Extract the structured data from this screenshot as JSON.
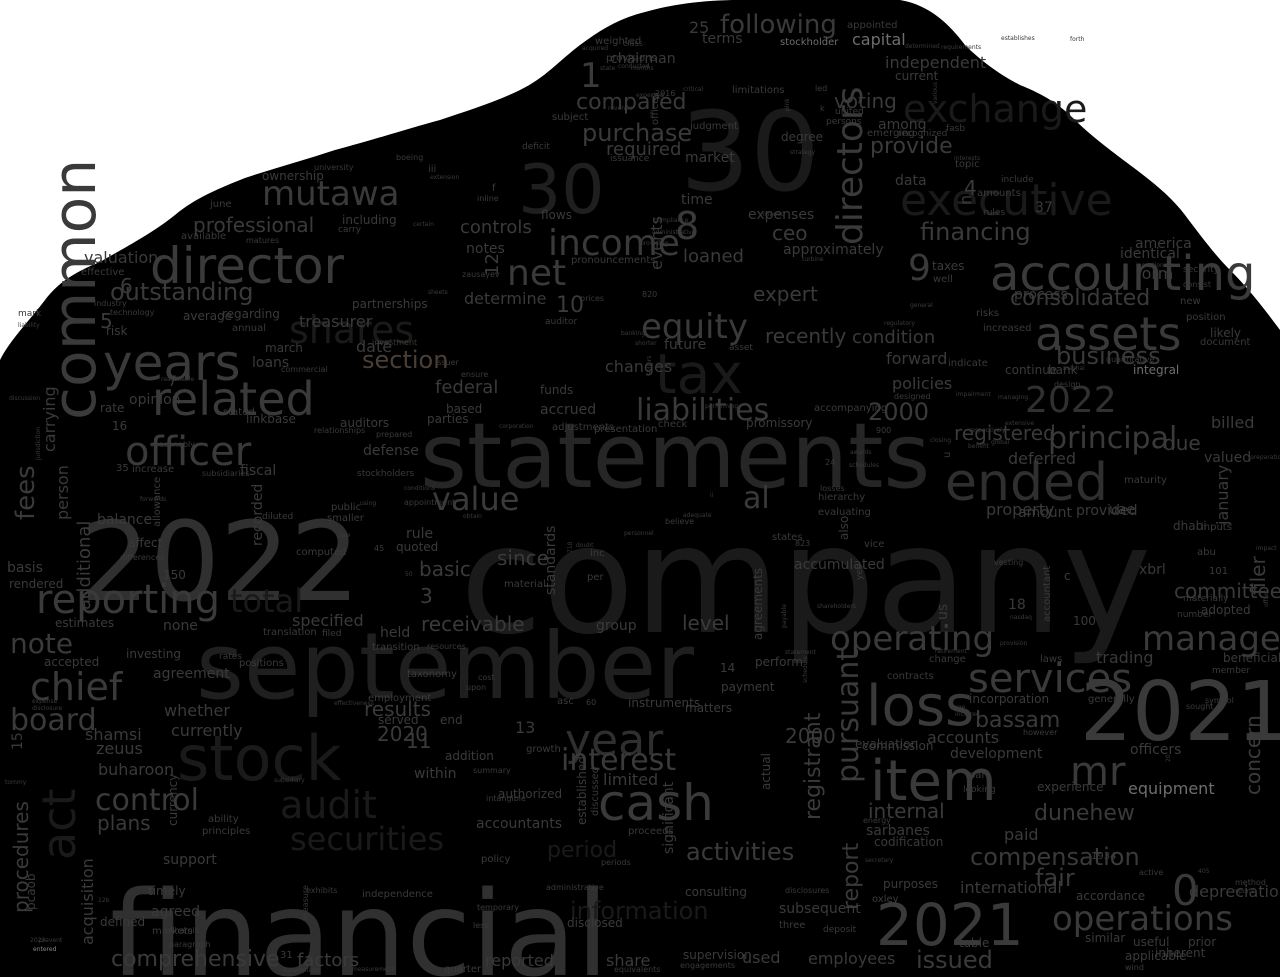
{
  "image": {
    "kind": "word-cloud",
    "background": "#ffffff",
    "shape_fill": "#000000",
    "word_colors": [
      "#1a1a1a",
      "#262626",
      "#303030",
      "#3a3a3a",
      "#2f2f2f",
      "#1f1f1f"
    ],
    "muted_colors": [
      "#6e6e6e",
      "#8a8a8a",
      "#5a5a5a"
    ],
    "accent_colors": [
      "#4a3f36",
      "#3d3a33"
    ]
  },
  "words": [
    "company",
    "financial",
    "statements",
    "september",
    "2022",
    "30",
    "2021",
    "item",
    "stock",
    "tax",
    "ended",
    "common",
    "director",
    "cash",
    "accounting",
    "assets",
    "year",
    "years",
    "related",
    "audit",
    "reporting",
    "officer",
    "mutawa",
    "executive",
    "exchange",
    "mr",
    "act",
    "shares",
    "income",
    "directors",
    "net",
    "total",
    "fees",
    "equity",
    "operating",
    "management",
    "services",
    "loss",
    "value",
    "al",
    "liabilities",
    "securities",
    "interest",
    "operations",
    "pursuant",
    "principal",
    "chief",
    "board",
    "note",
    "control",
    "2000",
    "issued",
    "internal",
    "business",
    "consolidated",
    "financing",
    "outstanding",
    "information",
    "activities",
    "compensation",
    "fair",
    "dunehew",
    "bassam",
    "section",
    "period",
    "report",
    "registrant",
    "following",
    "capital",
    "independent",
    "current",
    "provide",
    "purchase",
    "compared",
    "required",
    "market",
    "time",
    "expenses",
    "ceo",
    "professional",
    "treasurer",
    "date",
    "including",
    "controls",
    "notes",
    "federal",
    "based",
    "accrued",
    "changes",
    "registered",
    "deferred",
    "due",
    "property",
    "committee",
    "concern",
    "filer",
    "january",
    "equipment",
    "officers",
    "paid",
    "depreciation",
    "international",
    "accordance",
    "employees",
    "used",
    "factors",
    "reported",
    "share",
    "comprehensive",
    "procedures",
    "plans",
    "buharoon",
    "zeuus",
    "shamsi",
    "whether",
    "currently",
    "none",
    "agreement",
    "estimates",
    "accepted",
    "basis",
    "rendered",
    "additional",
    "person",
    "carrying",
    "balance",
    "rate",
    "opinion",
    "risk",
    "loans",
    "march",
    "regarding",
    "annual",
    "partnerships",
    "average",
    "valuation",
    "effective",
    "mark",
    "fiscal",
    "defense",
    "auditors",
    "stockholders",
    "public",
    "smaller",
    "recorded",
    "diluted",
    "computed",
    "rule",
    "quoted",
    "basic",
    "since",
    "standards",
    "inc",
    "per",
    "accumulated",
    "vice",
    "us",
    "xbrl",
    "adopted",
    "beneficial",
    "member",
    "trading",
    "change",
    "incorporation",
    "generally",
    "development",
    "accounts",
    "experience",
    "looking",
    "part",
    "recently",
    "condition",
    "policies",
    "forward",
    "indicate",
    "continue",
    "bank",
    "integral",
    "likely",
    "document",
    "position",
    "new",
    "risks",
    "increased",
    "consist",
    "security",
    "identical",
    "america",
    "form",
    "process",
    "taxes",
    "well",
    "data",
    "topic",
    "amounts",
    "rules",
    "include",
    "fasb",
    "emerging",
    "recognized",
    "among",
    "voting",
    "degree",
    "persons",
    "united",
    "also",
    "yes",
    "loaned",
    "events",
    "approximately",
    "pronouncements",
    "flows",
    "deficit",
    "subject",
    "chairman",
    "provisions",
    "weighted",
    "class",
    "terms",
    "stockholder",
    "appointed",
    "determined",
    "requirements",
    "judgment",
    "issuance",
    "offices",
    "2016",
    "critical",
    "limitations",
    "led",
    "expert",
    "determine",
    "prices",
    "auditor",
    "future",
    "asset",
    "funds",
    "ensure",
    "check",
    "promissory",
    "accompanying",
    "presentation",
    "adjustments",
    "corporation",
    "parties",
    "linkbase",
    "stated",
    "relationships",
    "prepared",
    "increase",
    "subsidiaries",
    "allowance",
    "affect",
    "differences",
    "investing",
    "rates",
    "filed",
    "positions",
    "translation",
    "transition",
    "employment",
    "held",
    "specified",
    "receivable",
    "level",
    "group",
    "states",
    "material",
    "amount",
    "provided",
    "uae",
    "dhabi",
    "abu",
    "number",
    "materially",
    "inputs",
    "billed",
    "valued",
    "maturity",
    "similar",
    "applicable",
    "wind",
    "useful",
    "inherent",
    "prior",
    "method",
    "reports",
    "active",
    "1934",
    "policy",
    "administrative",
    "periods",
    "proceeds",
    "significant",
    "consulting",
    "subsequent",
    "three",
    "disclosures",
    "disclosed",
    "less",
    "temporary",
    "measure",
    "independence",
    "exhibits",
    "timely",
    "agreed",
    "markets",
    "khamis",
    "paragraph",
    "defined",
    "12b",
    "acquisition",
    "support",
    "pcaob",
    "currency",
    "principles",
    "ability",
    "intangible",
    "authorized",
    "accountants",
    "summary",
    "addition",
    "end",
    "served",
    "within",
    "limited",
    "established",
    "discussed",
    "matters",
    "instruments",
    "asc",
    "taxonomy",
    "resources",
    "cost",
    "upon",
    "table",
    "purposes",
    "oxley",
    "sarbanes",
    "codification",
    "energy",
    "secretary",
    "deposit",
    "commission",
    "evaluation",
    "actual",
    "perform",
    "payment",
    "agreements",
    "2020",
    "results",
    "growth",
    "subsidiary",
    "effectiveness",
    "expense",
    "disclosure",
    "tommy",
    "entered",
    "prevent",
    "assumptions",
    "measurement",
    "quarter",
    "equivalents",
    "engagements",
    "supervision",
    "reasonably",
    "forwards",
    "available",
    "june",
    "ownership",
    "boeing",
    "university",
    "extension",
    "inline",
    "certain",
    "carry",
    "matures",
    "zausayev",
    "sheets",
    "investment",
    "commercial",
    "issuer",
    "reasonable",
    "technology",
    "industry",
    "liability",
    "jurisdiction",
    "discussion",
    "inception",
    "general",
    "regulatory",
    "designed",
    "impairment",
    "meshal",
    "quantitative",
    "benefit",
    "closing",
    "global",
    "respectively",
    "awards",
    "schedules",
    "design",
    "managing",
    "extensive",
    "large",
    "incurred",
    "however",
    "sought",
    "symbol",
    "offset",
    "preparation",
    "impact",
    "strategy",
    "various",
    "establishes",
    "forth",
    "interests",
    "islamic",
    "turbine",
    "compliance",
    "administrative",
    "providing",
    "expected",
    "sellers",
    "banking",
    "shorter",
    "accountant",
    "laws",
    "provision",
    "nasdaq",
    "retirement",
    "vesting",
    "contracts",
    "schedule",
    "statement",
    "payable",
    "shareholders",
    "losses",
    "hierarchy",
    "evaluating",
    "performing",
    "adequate",
    "believe",
    "personnel",
    "obtain",
    "doubt",
    "conditions",
    "appointment",
    "law",
    "using",
    "state",
    "months",
    "acquired",
    "pink",
    "conducted",
    "revenue",
    "legal",
    "complex",
    "employer",
    "entity",
    "revenues",
    "advances",
    "operation",
    "afforded",
    "critical",
    "limitation",
    "approved"
  ],
  "codes": [
    "30",
    "2022",
    "2021",
    "2000",
    "10",
    "8",
    "7",
    "6",
    "5",
    "3",
    "11",
    "12",
    "13",
    "15",
    "16",
    "100",
    "101",
    "150",
    "18",
    "20",
    "24",
    "25",
    "31",
    "35",
    "37",
    "4",
    "9",
    "0",
    "1",
    "f",
    "c",
    "n",
    "u",
    "k",
    "ii",
    "iii",
    "820",
    "900",
    "718",
    "823",
    "45",
    "50",
    "60",
    "14",
    "2023",
    "405",
    "48"
  ]
}
